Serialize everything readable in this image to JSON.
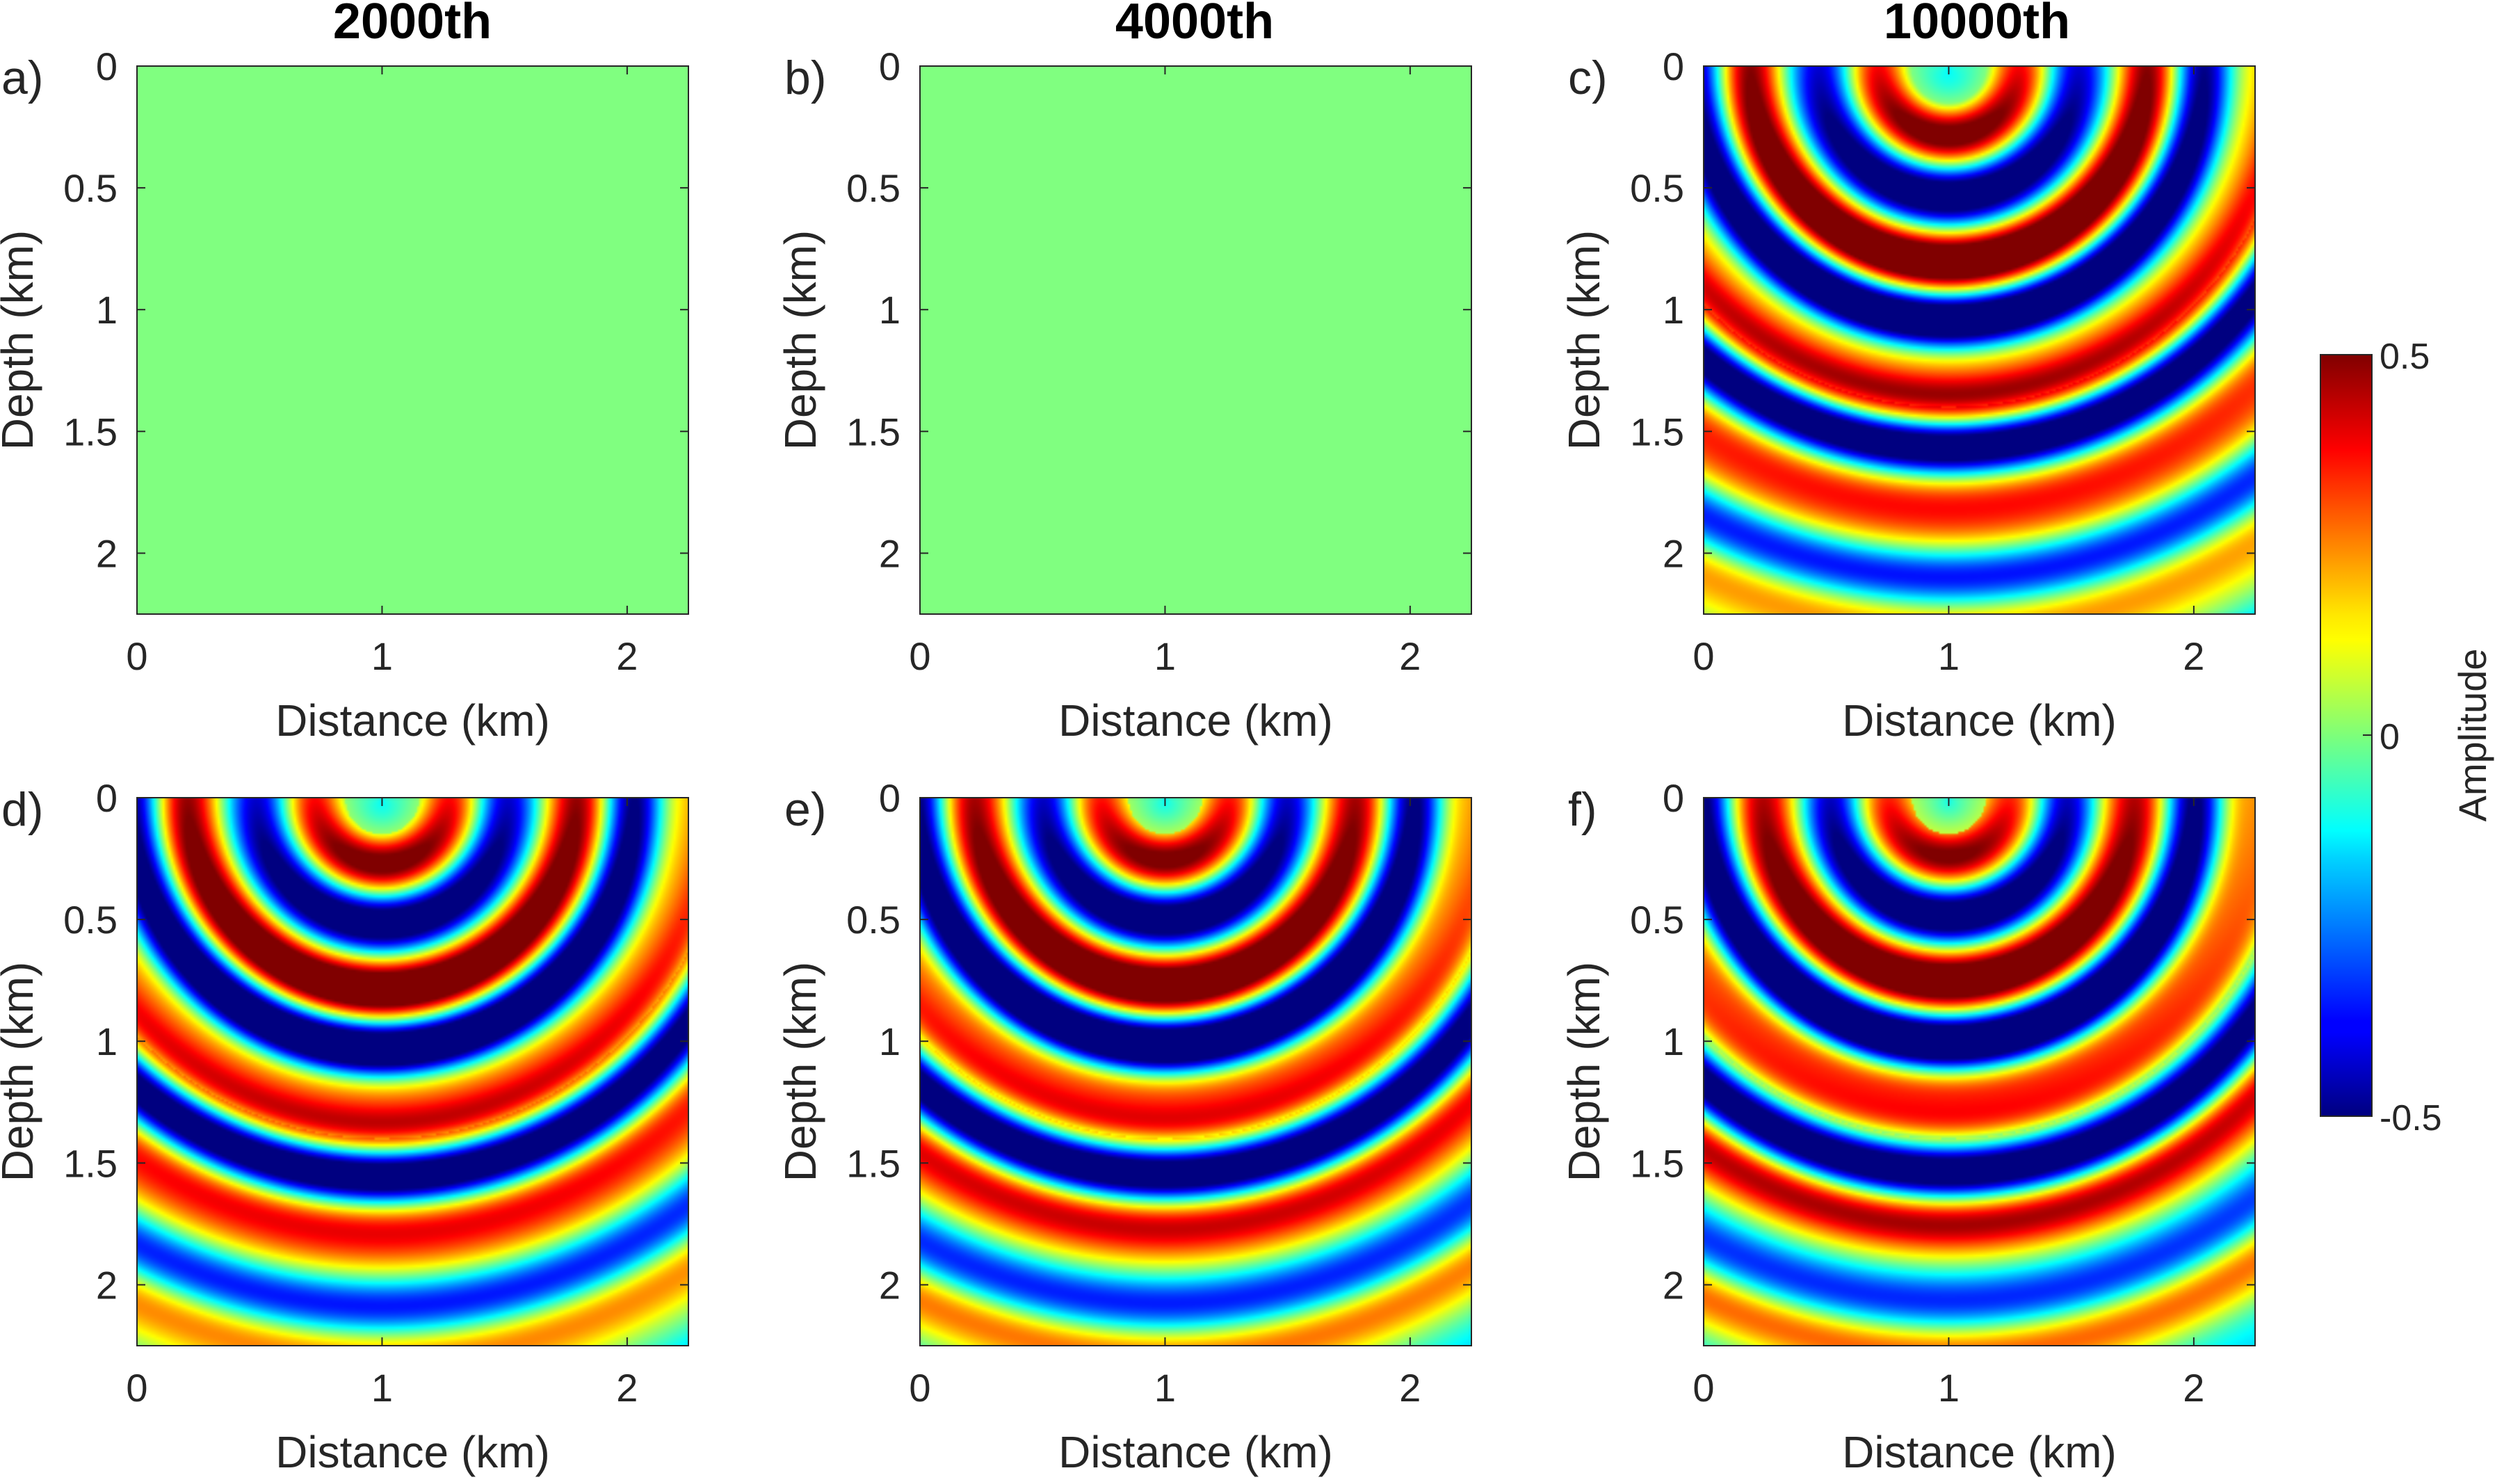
{
  "chart_data": {
    "type": "heatmap",
    "description_axis_units": "km",
    "column_titles": [
      "2000th",
      "4000th",
      "10000th"
    ],
    "xlabel": "Distance (km)",
    "ylabel": "Depth (km)",
    "xlim": [
      0,
      2.25
    ],
    "ylim": [
      0,
      2.25
    ],
    "x_ticks": [
      0,
      1,
      2
    ],
    "x_tick_labels": [
      "0",
      "1",
      "2"
    ],
    "y_ticks": [
      0,
      0.5,
      1,
      1.5,
      2
    ],
    "y_tick_labels": [
      "0",
      "0.5",
      "1",
      "1.5",
      "2"
    ],
    "colormap": "jet",
    "colorbar": {
      "label": "Amplitude",
      "range": [
        -0.5,
        0.5
      ],
      "ticks": [
        0.5,
        0,
        -0.5
      ],
      "tick_labels": [
        "0.5",
        "0",
        "-0.5"
      ]
    },
    "source": {
      "x_km": 1.0,
      "z_km": 0.0
    },
    "panels": [
      {
        "letter": "a)",
        "row": 1,
        "col": 1,
        "uniform_value": 0
      },
      {
        "letter": "b)",
        "row": 1,
        "col": 2,
        "uniform_value": 0
      },
      {
        "letter": "c)",
        "row": 1,
        "col": 3,
        "wavefield": "full"
      },
      {
        "letter": "d)",
        "row": 2,
        "col": 1,
        "wavefield": "full"
      },
      {
        "letter": "e)",
        "row": 2,
        "col": 2,
        "wavefield": "full"
      },
      {
        "letter": "f)",
        "row": 2,
        "col": 3,
        "wavefield": "full"
      }
    ]
  }
}
